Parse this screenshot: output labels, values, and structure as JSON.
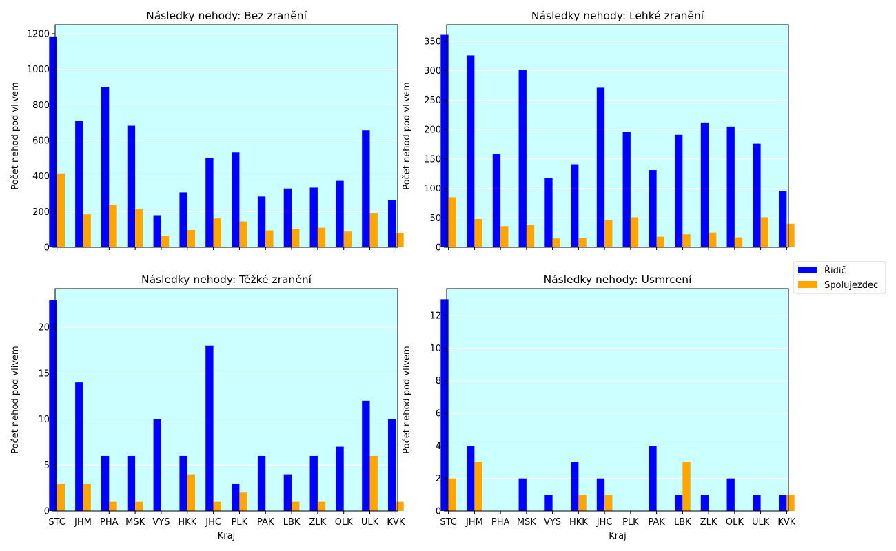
{
  "figure": {
    "legend": {
      "placement": "right",
      "entries": [
        {
          "label": "Řidič",
          "color": "#0000ff"
        },
        {
          "label": "Spolujezdec",
          "color": "#ffa500"
        }
      ]
    },
    "colors": {
      "axes_bg": "#ccffff",
      "grid": "#ffffff",
      "driver": "#0000ff",
      "passenger": "#ffa500"
    }
  },
  "chart_data": [
    {
      "type": "bar",
      "title": "Následky nehody: Bez zranění",
      "xlabel": "",
      "ylabel": "Počet nehod pod vlivem",
      "ylim": [
        0,
        1250
      ],
      "yticks": [
        0,
        200,
        400,
        600,
        800,
        1000,
        1200
      ],
      "grid": true,
      "categories": [
        "STC",
        "JHM",
        "PHA",
        "MSK",
        "VYS",
        "HKK",
        "JHC",
        "PLK",
        "PAK",
        "LBK",
        "ZLK",
        "OLK",
        "ULK",
        "KVK"
      ],
      "series": [
        {
          "name": "Řidič",
          "values": [
            1185,
            710,
            900,
            683,
            180,
            308,
            500,
            533,
            285,
            330,
            335,
            373,
            657,
            265
          ]
        },
        {
          "name": "Spolujezdec",
          "values": [
            415,
            185,
            240,
            215,
            65,
            97,
            162,
            145,
            95,
            103,
            110,
            88,
            193,
            80
          ]
        }
      ]
    },
    {
      "type": "bar",
      "title": "Následky nehody: Lehké zranění",
      "xlabel": "",
      "ylabel": "Počet nehod pod vlivem",
      "ylim": [
        0,
        378
      ],
      "yticks": [
        0,
        50,
        100,
        150,
        200,
        250,
        300,
        350
      ],
      "grid": true,
      "categories": [
        "STC",
        "JHM",
        "PHA",
        "MSK",
        "VYS",
        "HKK",
        "JHC",
        "PLK",
        "PAK",
        "LBK",
        "ZLK",
        "OLK",
        "ULK",
        "KVK"
      ],
      "series": [
        {
          "name": "Řidič",
          "values": [
            361,
            326,
            158,
            301,
            118,
            141,
            271,
            196,
            131,
            191,
            212,
            205,
            176,
            96
          ]
        },
        {
          "name": "Spolujezdec",
          "values": [
            85,
            48,
            36,
            38,
            15,
            16,
            46,
            51,
            18,
            22,
            25,
            17,
            51,
            40
          ]
        }
      ]
    },
    {
      "type": "bar",
      "title": "Následky nehody: Těžké zranění",
      "xlabel": "Kraj",
      "ylabel": "Počet nehod pod vlivem",
      "ylim": [
        0,
        24.2
      ],
      "yticks": [
        0,
        5,
        10,
        15,
        20
      ],
      "grid": true,
      "categories": [
        "STC",
        "JHM",
        "PHA",
        "MSK",
        "VYS",
        "HKK",
        "JHC",
        "PLK",
        "PAK",
        "LBK",
        "ZLK",
        "OLK",
        "ULK",
        "KVK"
      ],
      "series": [
        {
          "name": "Řidič",
          "values": [
            23,
            14,
            6,
            6,
            10,
            6,
            18,
            3,
            6,
            4,
            6,
            7,
            12,
            10
          ]
        },
        {
          "name": "Spolujezdec",
          "values": [
            3,
            3,
            1,
            1,
            0,
            4,
            1,
            2,
            0,
            1,
            1,
            0,
            6,
            1
          ]
        }
      ]
    },
    {
      "type": "bar",
      "title": "Následky nehody: Usmrcení",
      "xlabel": "Kraj",
      "ylabel": "Počet nehod pod vlivem",
      "ylim": [
        0,
        13.65
      ],
      "yticks": [
        0,
        2,
        4,
        6,
        8,
        10,
        12
      ],
      "grid": true,
      "categories": [
        "STC",
        "JHM",
        "PHA",
        "MSK",
        "VYS",
        "HKK",
        "JHC",
        "PLK",
        "PAK",
        "LBK",
        "ZLK",
        "OLK",
        "ULK",
        "KVK"
      ],
      "series": [
        {
          "name": "Řidič",
          "values": [
            13,
            4,
            0,
            2,
            1,
            3,
            2,
            0,
            4,
            1,
            1,
            2,
            1,
            1
          ]
        },
        {
          "name": "Spolujezdec",
          "values": [
            2,
            3,
            0,
            0,
            0,
            1,
            1,
            0,
            0,
            3,
            0,
            0,
            0,
            1
          ]
        }
      ]
    }
  ]
}
